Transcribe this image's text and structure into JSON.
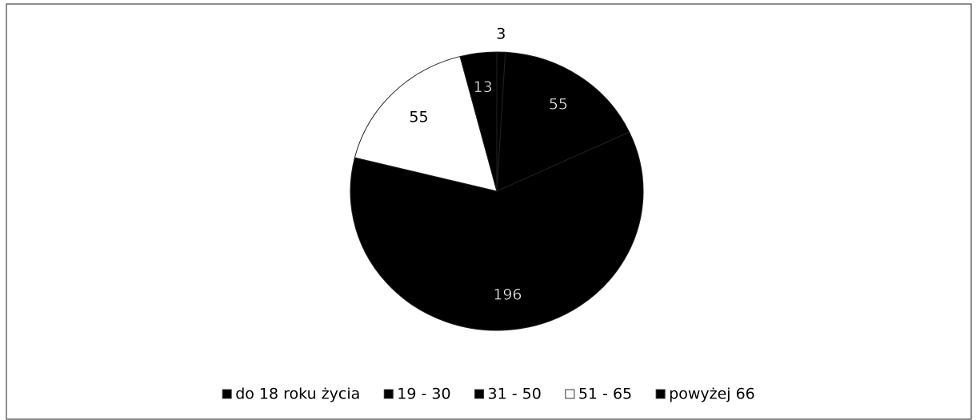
{
  "chart_data": {
    "type": "pie",
    "categories": [
      "do 18 roku życia",
      "19 - 30",
      "31 - 50",
      "51 - 65",
      "powyżej 66"
    ],
    "values": [
      3,
      55,
      196,
      55,
      13
    ],
    "colors": [
      "#000000",
      "#000000",
      "#000000",
      "#ffffff",
      "#000000"
    ],
    "legend": "bottom"
  }
}
